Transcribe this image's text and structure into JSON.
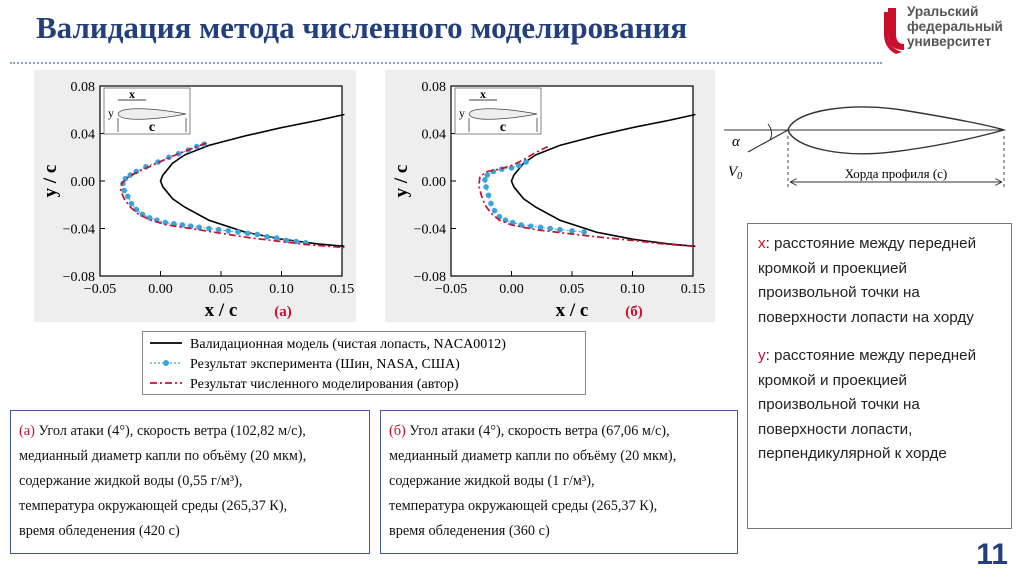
{
  "title": "Валидация метода численного моделирования",
  "logo": {
    "line1": "Уральский",
    "line2": "федеральный",
    "line3": "университет"
  },
  "page_number": "11",
  "colors": {
    "title": "#233f7c",
    "accent_red": "#c8102e",
    "experiment_blue": "#3aa5dc"
  },
  "chart_data": [
    {
      "type": "line",
      "panel_label": "(а)",
      "xlabel": "x / c",
      "ylabel": "y / c",
      "xlim": [
        -0.05,
        0.15
      ],
      "ylim": [
        -0.08,
        0.08
      ],
      "xticks": [
        "−0.05",
        "0.00",
        "0.05",
        "0.10",
        "0.15"
      ],
      "yticks": [
        "0.08",
        "0.04",
        "0.00",
        "−0.04",
        "−0.08"
      ],
      "inset": {
        "x": "x",
        "y": "y",
        "c": "c"
      },
      "series": [
        {
          "name": "Валидационная модель (чистая лопасть, NACA0012)",
          "x": [
            0.152,
            0.13,
            0.1,
            0.07,
            0.04,
            0.02,
            0.01,
            0.002,
            0.0,
            0.002,
            0.01,
            0.02,
            0.04,
            0.07,
            0.1,
            0.13,
            0.152
          ],
          "y": [
            0.056,
            0.051,
            0.045,
            0.038,
            0.03,
            0.022,
            0.015,
            0.005,
            0.0,
            -0.005,
            -0.015,
            -0.022,
            -0.033,
            -0.043,
            -0.049,
            -0.053,
            -0.055
          ]
        },
        {
          "name": "Результат эксперимента (Шин, NASA, США)",
          "x": [
            0.036,
            0.03,
            0.023,
            0.015,
            0.007,
            -0.002,
            -0.012,
            -0.02,
            -0.025,
            -0.029,
            -0.031,
            -0.03,
            -0.027,
            -0.024,
            -0.02,
            -0.015,
            -0.009,
            -0.003,
            0.004,
            0.011,
            0.018,
            0.025,
            0.032,
            0.04,
            0.048,
            0.056,
            0.064,
            0.072,
            0.08,
            0.088,
            0.096,
            0.104,
            0.112,
            0.12
          ],
          "y": [
            0.031,
            0.029,
            0.026,
            0.023,
            0.02,
            0.016,
            0.012,
            0.008,
            0.005,
            0.002,
            -0.002,
            -0.008,
            -0.013,
            -0.019,
            -0.024,
            -0.028,
            -0.031,
            -0.033,
            -0.035,
            -0.036,
            -0.037,
            -0.038,
            -0.039,
            -0.04,
            -0.041,
            -0.042,
            -0.043,
            -0.044,
            -0.045,
            -0.047,
            -0.048,
            -0.05,
            -0.051,
            -0.052
          ]
        },
        {
          "name": "Результат численного моделирования (автор)",
          "x": [
            0.038,
            0.025,
            0.01,
            -0.005,
            -0.018,
            -0.027,
            -0.032,
            -0.033,
            -0.03,
            -0.025,
            -0.018,
            -0.008,
            0.005,
            0.025,
            0.05,
            0.075,
            0.1,
            0.125,
            0.152
          ],
          "y": [
            0.032,
            0.027,
            0.021,
            0.014,
            0.008,
            0.003,
            -0.002,
            -0.008,
            -0.015,
            -0.022,
            -0.028,
            -0.033,
            -0.037,
            -0.04,
            -0.044,
            -0.048,
            -0.051,
            -0.054,
            -0.056
          ]
        }
      ]
    },
    {
      "type": "line",
      "panel_label": "(б)",
      "xlabel": "x / c",
      "ylabel": "y / c",
      "xlim": [
        -0.05,
        0.15
      ],
      "ylim": [
        -0.08,
        0.08
      ],
      "xticks": [
        "−0.05",
        "0.00",
        "0.05",
        "0.10",
        "0.15"
      ],
      "yticks": [
        "0.08",
        "0.04",
        "0.00",
        "−0.04",
        "−0.08"
      ],
      "inset": {
        "x": "x",
        "y": "y",
        "c": "c"
      },
      "series": [
        {
          "name": "Валидационная модель (чистая лопасть, NACA0012)",
          "x": [
            0.152,
            0.13,
            0.1,
            0.07,
            0.04,
            0.02,
            0.01,
            0.002,
            0.0,
            0.002,
            0.01,
            0.02,
            0.04,
            0.07,
            0.1,
            0.13,
            0.152
          ],
          "y": [
            0.056,
            0.051,
            0.045,
            0.038,
            0.03,
            0.022,
            0.015,
            0.005,
            0.0,
            -0.005,
            -0.015,
            -0.022,
            -0.033,
            -0.043,
            -0.049,
            -0.053,
            -0.055
          ]
        },
        {
          "name": "Результат эксперимента (Шин, NASA, США)",
          "x": [
            0.012,
            0.006,
            0.0,
            -0.008,
            -0.015,
            -0.02,
            -0.022,
            -0.021,
            -0.019,
            -0.017,
            -0.014,
            -0.01,
            -0.005,
            0.001,
            0.008,
            0.016,
            0.024,
            0.032,
            0.04,
            0.05,
            0.06
          ],
          "y": [
            0.016,
            0.013,
            0.011,
            0.01,
            0.008,
            0.005,
            0.001,
            -0.005,
            -0.012,
            -0.019,
            -0.025,
            -0.03,
            -0.033,
            -0.035,
            -0.037,
            -0.038,
            -0.039,
            -0.04,
            -0.041,
            -0.042,
            -0.043
          ]
        },
        {
          "name": "Результат численного моделирования (автор)",
          "x": [
            0.03,
            0.02,
            0.01,
            0.0,
            -0.01,
            -0.02,
            -0.026,
            -0.027,
            -0.025,
            -0.022,
            -0.017,
            -0.01,
            0.0,
            0.02,
            0.045,
            0.07,
            0.1,
            0.125,
            0.15
          ],
          "y": [
            0.029,
            0.024,
            0.018,
            0.013,
            0.01,
            0.008,
            0.004,
            -0.004,
            -0.012,
            -0.02,
            -0.027,
            -0.033,
            -0.037,
            -0.041,
            -0.044,
            -0.047,
            -0.05,
            -0.053,
            -0.055
          ]
        }
      ]
    }
  ],
  "legend": {
    "items": [
      "Валидационная модель (чистая лопасть, NACA0012)",
      "Результат эксперимента (Шин, NASA, США)",
      "Результат численного моделирования (автор)"
    ]
  },
  "airfoil_diagram": {
    "alpha": "α",
    "v0": "V",
    "v0_sub": "0",
    "chord": "Хорда профиля (c)"
  },
  "params_a": {
    "tag": "(а)",
    "line1": " Угол атаки (4°), скорость ветра (102,82 м/с),",
    "line2": "медианный диаметр капли по объёму (20 мкм),",
    "line3": "содержание жидкой воды (0,55 г/м³),",
    "line4": "температура окружающей среды (265,37 К),",
    "line5": "время обледенения (420 с)"
  },
  "params_b": {
    "tag": "(б)",
    "line1": " Угол атаки (4°), скорость ветра (67,06 м/с),",
    "line2": "медианный диаметр капли по объёму (20 мкм),",
    "line3": "содержание жидкой воды (1 г/м³),",
    "line4": "температура окружающей среды (265,37 К),",
    "line5": "время обледенения (360 с)"
  },
  "definitions": {
    "x_var": "x",
    "x_text": ": расстояние между передней кромкой и проекцией произвольной точки на поверхности лопасти на хорду",
    "y_var": "y",
    "y_text": ": расстояние между передней кромкой и проекцией произвольной точки на поверхности лопасти, перпендикулярной к хорде"
  }
}
